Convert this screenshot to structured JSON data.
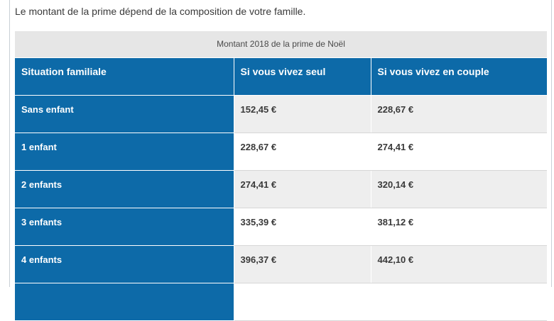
{
  "intro_text": "Le montant de la prime dépend de la composition de votre famille.",
  "table": {
    "caption": "Montant 2018 de la prime de Noël",
    "headers": [
      "Situation familiale",
      "Si vous vivez seul",
      "Si vous vivez en couple"
    ],
    "rows": [
      {
        "situation": "Sans enfant",
        "seul": "152,45 €",
        "couple": "228,67 €"
      },
      {
        "situation": "1 enfant",
        "seul": "228,67 €",
        "couple": "274,41 €"
      },
      {
        "situation": "2 enfants",
        "seul": "274,41 €",
        "couple": "320,14 €"
      },
      {
        "situation": "3 enfants",
        "seul": "335,39 €",
        "couple": "381,12 €"
      },
      {
        "situation": "4 enfants",
        "seul": "396,37 €",
        "couple": "442,10 €"
      }
    ]
  },
  "colors": {
    "header_blue": "#0d6aa8",
    "caption_gray": "#e6e6e6",
    "row_shade": "#eeeeee"
  }
}
